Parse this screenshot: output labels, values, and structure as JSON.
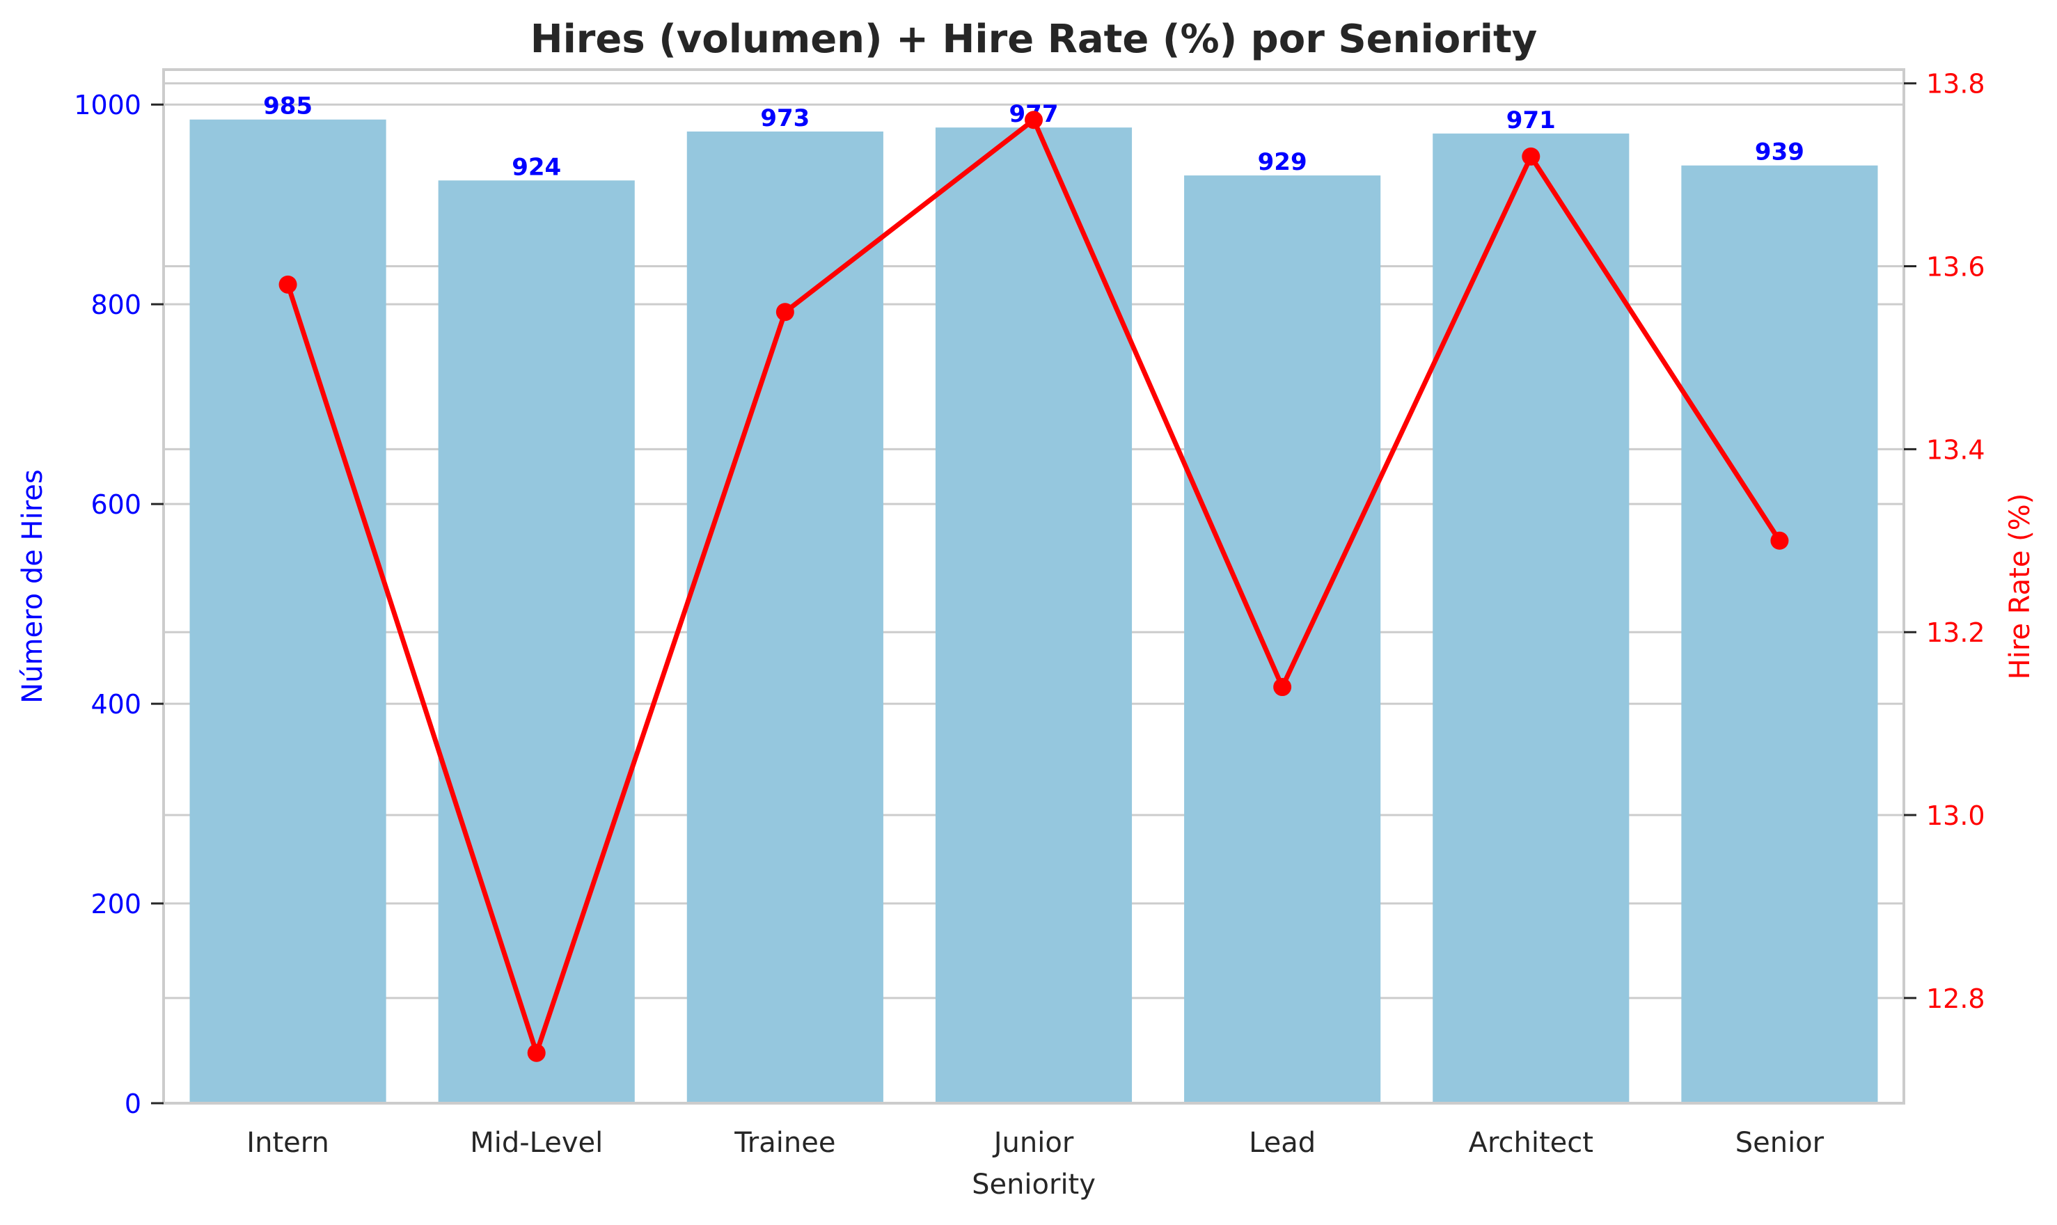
{
  "chart_data": {
    "type": "bar",
    "title": "Hires (volumen) + Hire Rate (%) por Seniority",
    "xlabel": "Seniority",
    "ylabel": "Número de Hires",
    "y2label": "Hire Rate (%)",
    "categories": [
      "Intern",
      "Mid-Level",
      "Trainee",
      "Junior",
      "Lead",
      "Architect",
      "Senior"
    ],
    "series": [
      {
        "name": "Hires",
        "type": "bar",
        "axis": "left",
        "values": [
          985,
          924,
          973,
          977,
          929,
          971,
          939
        ],
        "data_labels": [
          "985",
          "924",
          "973",
          "977",
          "929",
          "971",
          "939"
        ]
      },
      {
        "name": "Hire Rate",
        "type": "line",
        "axis": "right",
        "values": [
          13.58,
          12.74,
          13.55,
          13.76,
          13.14,
          13.72,
          13.3
        ]
      }
    ],
    "ylim": [
      0,
      1035
    ],
    "y2lim": [
      12.685,
      13.815
    ],
    "yticks": [
      "0",
      "200",
      "400",
      "600",
      "800",
      "1000"
    ],
    "y2ticks": [
      "12.8",
      "13.0",
      "13.2",
      "13.4",
      "13.6",
      "13.8"
    ],
    "grid": true,
    "colors": {
      "bar": "#95c7de",
      "line": "#ff0000",
      "left_axis": "#0000ff",
      "right_axis": "#ff0000",
      "grid": "#cccccc",
      "text": "#262626"
    }
  }
}
